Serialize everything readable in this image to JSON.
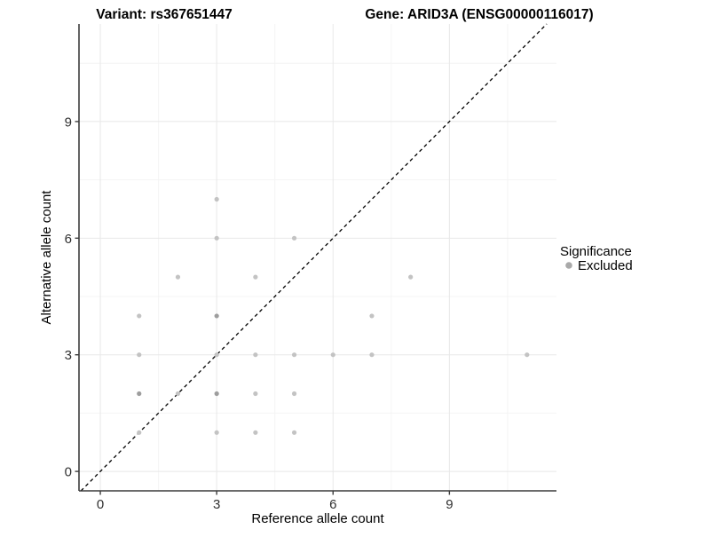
{
  "header": {
    "title_left": "Variant: rs367651447",
    "title_right": "Gene: ARID3A (ENSG00000116017)"
  },
  "legend": {
    "title": "Significance",
    "items": [
      {
        "label": "Excluded",
        "color": "#a9a9a9"
      }
    ]
  },
  "colors": {
    "axis_line": "#3c3c3c",
    "tick_label": "#303030",
    "grid_major": "#e8e8e8",
    "grid_minor": "#f4f4f4"
  },
  "chart_data": {
    "type": "scatter",
    "title": "Variant: rs367651447   Gene: ARID3A (ENSG00000116017)",
    "xlabel": "Reference allele count",
    "ylabel": "Alternative allele count",
    "xticks": [
      0,
      3,
      6,
      9
    ],
    "yticks": [
      0,
      3,
      6,
      9
    ],
    "minor_ticks_x": [
      1.5,
      4.5,
      7.5,
      10.5
    ],
    "minor_ticks_y": [
      1.5,
      4.5,
      7.5,
      10.5
    ],
    "xlim": [
      -0.55,
      11.76
    ],
    "ylim": [
      -0.5,
      11.51
    ],
    "grid": "major and minor, light gray on white",
    "legend_position": "right",
    "identity_line": {
      "style": "dashed",
      "color": "#000000",
      "from": -0.5,
      "to": 11.51
    },
    "point_color": "#c3c3c3",
    "point_color_dark": "#9d9d9d",
    "series": [
      {
        "name": "Excluded",
        "points": [
          {
            "x": 1,
            "y": 1
          },
          {
            "x": 1,
            "y": 2,
            "dark": true
          },
          {
            "x": 1,
            "y": 3
          },
          {
            "x": 1,
            "y": 4
          },
          {
            "x": 2,
            "y": 2
          },
          {
            "x": 2,
            "y": 5
          },
          {
            "x": 3,
            "y": 1
          },
          {
            "x": 3,
            "y": 2,
            "dark": true
          },
          {
            "x": 3,
            "y": 3
          },
          {
            "x": 3,
            "y": 4,
            "dark": true
          },
          {
            "x": 3,
            "y": 6
          },
          {
            "x": 3,
            "y": 7
          },
          {
            "x": 4,
            "y": 1
          },
          {
            "x": 4,
            "y": 2
          },
          {
            "x": 4,
            "y": 3
          },
          {
            "x": 4,
            "y": 5
          },
          {
            "x": 5,
            "y": 1
          },
          {
            "x": 5,
            "y": 2
          },
          {
            "x": 5,
            "y": 3
          },
          {
            "x": 5,
            "y": 6
          },
          {
            "x": 6,
            "y": 3
          },
          {
            "x": 7,
            "y": 3
          },
          {
            "x": 7,
            "y": 4
          },
          {
            "x": 8,
            "y": 5
          },
          {
            "x": 11,
            "y": 3
          }
        ]
      }
    ]
  }
}
